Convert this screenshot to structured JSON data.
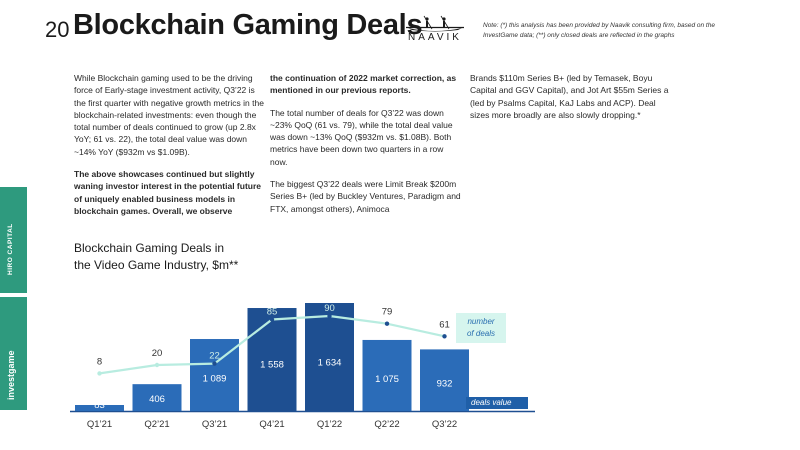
{
  "header": {
    "page_number": "20",
    "title": "Blockchain Gaming Deals",
    "logo_text": "NAAVIK",
    "note": "Note: (*) this analysis has been provided by Naavik consulting firm, based on the InvestGame data; (**) only closed deals are reflected in the graphs"
  },
  "body": {
    "col1_p1": "While Blockchain gaming used to be the driving force of Early-stage investment activity, Q3’22 is the first quarter with negative growth metrics in the blockchain-related investments: even though the total number of deals continued to grow (up 2.8x YoY; 61 vs. 22), the total deal value was down ~14% YoY ($932m vs $1.09B).",
    "col1_p2": "The above showcases continued but slightly waning investor interest in the potential future of uniquely enabled business models in blockchain games. Overall, we observe",
    "col2_p1": "the continuation of 2022 market correction, as mentioned in our previous reports.",
    "col2_p2": "The total number of deals for Q3’22 was down ~23% QoQ (61 vs. 79), while the total deal value was down ~13% QoQ ($932m vs. $1.08B). Both metrics have been down two quarters in a row now.",
    "col2_p3": "The biggest Q3’22 deals were Limit Break $200m Series B+ (led by Buckley Ventures, Paradigm and FTX, amongst others), Animoca",
    "col3_p1": "Brands $110m Series B+ (led by Temasek, Boyu Capital and GGV Capital), and Jot Art $55m Series a (led by Psalms Capital, KaJ Labs and ACP). Deal sizes more broadly are also slowly dropping.*"
  },
  "sidebar": {
    "brand1": "HIRO CAPITAL",
    "brand2": "investgame"
  },
  "chart_data": {
    "type": "bar",
    "title": "Blockchain Gaming Deals in the Video Game Industry, $m**",
    "title_line1": "Blockchain Gaming Deals in",
    "title_line2": "the Video Game Industry, $m**",
    "categories": [
      "Q1’21",
      "Q2’21",
      "Q3’21",
      "Q4’21",
      "Q1’22",
      "Q2’22",
      "Q3’22"
    ],
    "series": [
      {
        "name": "deals value",
        "type": "bar",
        "values": [
          83,
          406,
          1089,
          1558,
          1634,
          1075,
          932
        ],
        "labels": [
          "83",
          "406",
          "1 089",
          "1 558",
          "1 634",
          "1 075",
          "932"
        ]
      },
      {
        "name": "number of deals",
        "type": "line",
        "values": [
          8,
          20,
          22,
          85,
          90,
          79,
          61
        ]
      }
    ],
    "legend_line": "number of deals",
    "legend_line_1": "number",
    "legend_line_2": "of deals",
    "legend_bar": "deals value",
    "colors": {
      "bar_dark": "#1e4f91",
      "bar_light": "#2b6cb8",
      "line": "#b8ece0",
      "accent": "#2e9a7e"
    }
  }
}
